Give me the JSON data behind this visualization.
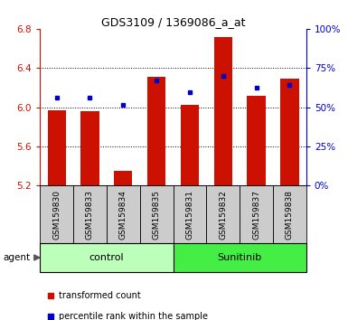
{
  "title": "GDS3109 / 1369086_a_at",
  "samples": [
    "GSM159830",
    "GSM159833",
    "GSM159834",
    "GSM159835",
    "GSM159831",
    "GSM159832",
    "GSM159837",
    "GSM159838"
  ],
  "red_values": [
    5.97,
    5.96,
    5.35,
    6.31,
    6.02,
    6.72,
    6.12,
    6.29
  ],
  "blue_values": [
    6.1,
    6.1,
    6.02,
    6.27,
    6.15,
    6.32,
    6.2,
    6.23
  ],
  "y_min": 5.2,
  "y_max": 6.8,
  "y_ticks_left": [
    5.2,
    5.6,
    6.0,
    6.4,
    6.8
  ],
  "y_ticks_right": [
    0,
    25,
    50,
    75,
    100
  ],
  "groups": [
    {
      "label": "control",
      "start": 0,
      "end": 3,
      "color": "#bbffbb"
    },
    {
      "label": "Sunitinib",
      "start": 4,
      "end": 7,
      "color": "#44ee44"
    }
  ],
  "bar_color": "#cc1100",
  "dot_color": "#0000cc",
  "bar_bottom": 5.2,
  "bar_width": 0.55,
  "sample_box_color": "#cccccc",
  "agent_label": "agent",
  "legend_items": [
    {
      "color": "#cc1100",
      "label": "transformed count"
    },
    {
      "color": "#0000cc",
      "label": "percentile rank within the sample"
    }
  ]
}
